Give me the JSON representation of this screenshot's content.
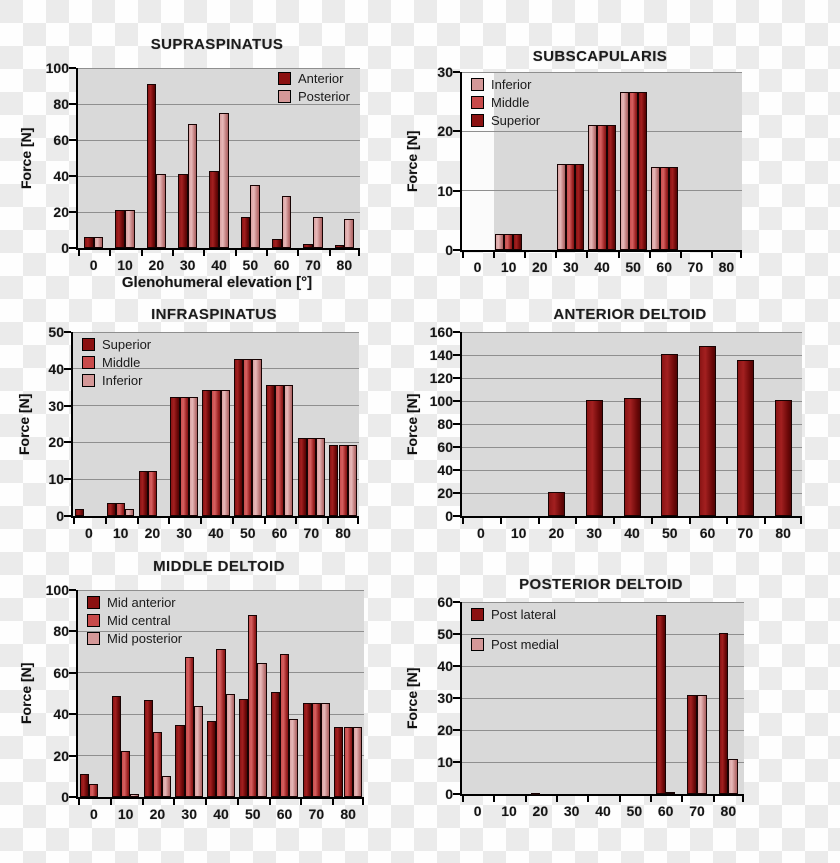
{
  "colors": {
    "series_dark": "#8b1111",
    "series_medium": "#c84a4a",
    "series_light": "#d49898",
    "plot_background": "#d9d9d9",
    "gridline": "#8f8f8f",
    "axis": "#000000",
    "checker_white": "#fefefe",
    "checker_gray": "#ebebeb"
  },
  "chart_data": [
    {
      "id": "supraspinatus",
      "type": "bar",
      "title": "SUPRASPINATUS",
      "ylabel": "Force [N]",
      "xlabel": "Glenohumeral elevation [°]",
      "categories": [
        "0",
        "10",
        "20",
        "30",
        "40",
        "50",
        "60",
        "70",
        "80"
      ],
      "ylim": [
        0,
        100
      ],
      "ytick_step": 20,
      "grid": true,
      "legend_position": "top-right",
      "series": [
        {
          "name": "Anterior",
          "color": "dark",
          "values": [
            6,
            21,
            91,
            41,
            43,
            17,
            5,
            2,
            1.5
          ]
        },
        {
          "name": "Posterior",
          "color": "light",
          "values": [
            6,
            21,
            41,
            69,
            75,
            35,
            29,
            17.5,
            16
          ]
        }
      ]
    },
    {
      "id": "subscapularis",
      "type": "bar",
      "title": "SUBSCAPULARIS",
      "ylabel": "Force [N]",
      "categories": [
        "0",
        "10",
        "20",
        "30",
        "40",
        "50",
        "60",
        "70",
        "80"
      ],
      "ylim": [
        0,
        30
      ],
      "ytick_step": 10,
      "grid": true,
      "legend_position": "top-left",
      "series": [
        {
          "name": "Inferior",
          "color": "light",
          "values": [
            0,
            2.7,
            0,
            14.5,
            21,
            26.7,
            14,
            0,
            0
          ]
        },
        {
          "name": "Middle",
          "color": "medium",
          "values": [
            0,
            2.7,
            0,
            14.5,
            21,
            26.7,
            14,
            0,
            0
          ]
        },
        {
          "name": "Superior",
          "color": "dark",
          "values": [
            0,
            2.7,
            0,
            14.5,
            21,
            26.7,
            14,
            0,
            0
          ]
        }
      ]
    },
    {
      "id": "infraspinatus",
      "type": "bar",
      "title": "INFRASPINATUS",
      "ylabel": "Force [N]",
      "categories": [
        "0",
        "10",
        "20",
        "30",
        "40",
        "50",
        "60",
        "70",
        "80"
      ],
      "ylim": [
        0,
        50
      ],
      "ytick_step": 10,
      "grid": true,
      "legend_position": "top-left",
      "series": [
        {
          "name": "Superior",
          "color": "dark",
          "values": [
            2,
            3.5,
            12.3,
            32.3,
            34.3,
            42.7,
            35.5,
            21.3,
            19.3
          ]
        },
        {
          "name": "Middle",
          "color": "medium",
          "values": [
            0,
            3.5,
            12.3,
            32.3,
            34.3,
            42.7,
            35.5,
            21.3,
            19.3
          ]
        },
        {
          "name": "Inferior",
          "color": "light",
          "values": [
            0,
            2,
            0,
            32.3,
            34.3,
            42.7,
            35.5,
            21.3,
            19.3
          ]
        }
      ]
    },
    {
      "id": "anterior-deltoid",
      "type": "bar",
      "title": "ANTERIOR DELTOID",
      "ylabel": "Force [N]",
      "categories": [
        "0",
        "10",
        "20",
        "30",
        "40",
        "50",
        "60",
        "70",
        "80"
      ],
      "ylim": [
        0,
        160
      ],
      "ytick_step": 20,
      "grid": true,
      "legend_position": "none",
      "series": [
        {
          "name": "",
          "color": "dark",
          "values": [
            0,
            0,
            21,
            101,
            103,
            141,
            148,
            136,
            101
          ]
        }
      ]
    },
    {
      "id": "middle-deltoid",
      "type": "bar",
      "title": "MIDDLE DELTOID",
      "ylabel": "Force [N]",
      "categories": [
        "0",
        "10",
        "20",
        "30",
        "40",
        "50",
        "60",
        "70",
        "80"
      ],
      "ylim": [
        0,
        100
      ],
      "ytick_step": 20,
      "grid": true,
      "legend_position": "top-left",
      "series": [
        {
          "name": "Mid anterior",
          "color": "dark",
          "values": [
            11,
            49,
            47,
            35,
            36.5,
            47.5,
            50.5,
            45.5,
            34
          ]
        },
        {
          "name": "Mid central",
          "color": "medium",
          "values": [
            6.5,
            22,
            31.5,
            67.5,
            71.5,
            88,
            69,
            45.5,
            34
          ]
        },
        {
          "name": "Mid posterior",
          "color": "light",
          "values": [
            0,
            1.5,
            10,
            44,
            50,
            64.5,
            37.5,
            45.5,
            34
          ]
        }
      ]
    },
    {
      "id": "posterior-deltoid",
      "type": "bar",
      "title": "POSTERIOR DELTOID",
      "ylabel": "Force [N]",
      "categories": [
        "0",
        "10",
        "20",
        "30",
        "40",
        "50",
        "60",
        "70",
        "80"
      ],
      "ylim": [
        0,
        60
      ],
      "ytick_step": 10,
      "grid": true,
      "legend_position": "top-left",
      "series": [
        {
          "name": "Post lateral",
          "color": "dark",
          "values": [
            0,
            0,
            0.4,
            0,
            0,
            0,
            56,
            31,
            50.3
          ]
        },
        {
          "name": "Post medial",
          "color": "light",
          "values": [
            0,
            0,
            0,
            0,
            0,
            0,
            0.7,
            31,
            11
          ]
        }
      ]
    }
  ]
}
